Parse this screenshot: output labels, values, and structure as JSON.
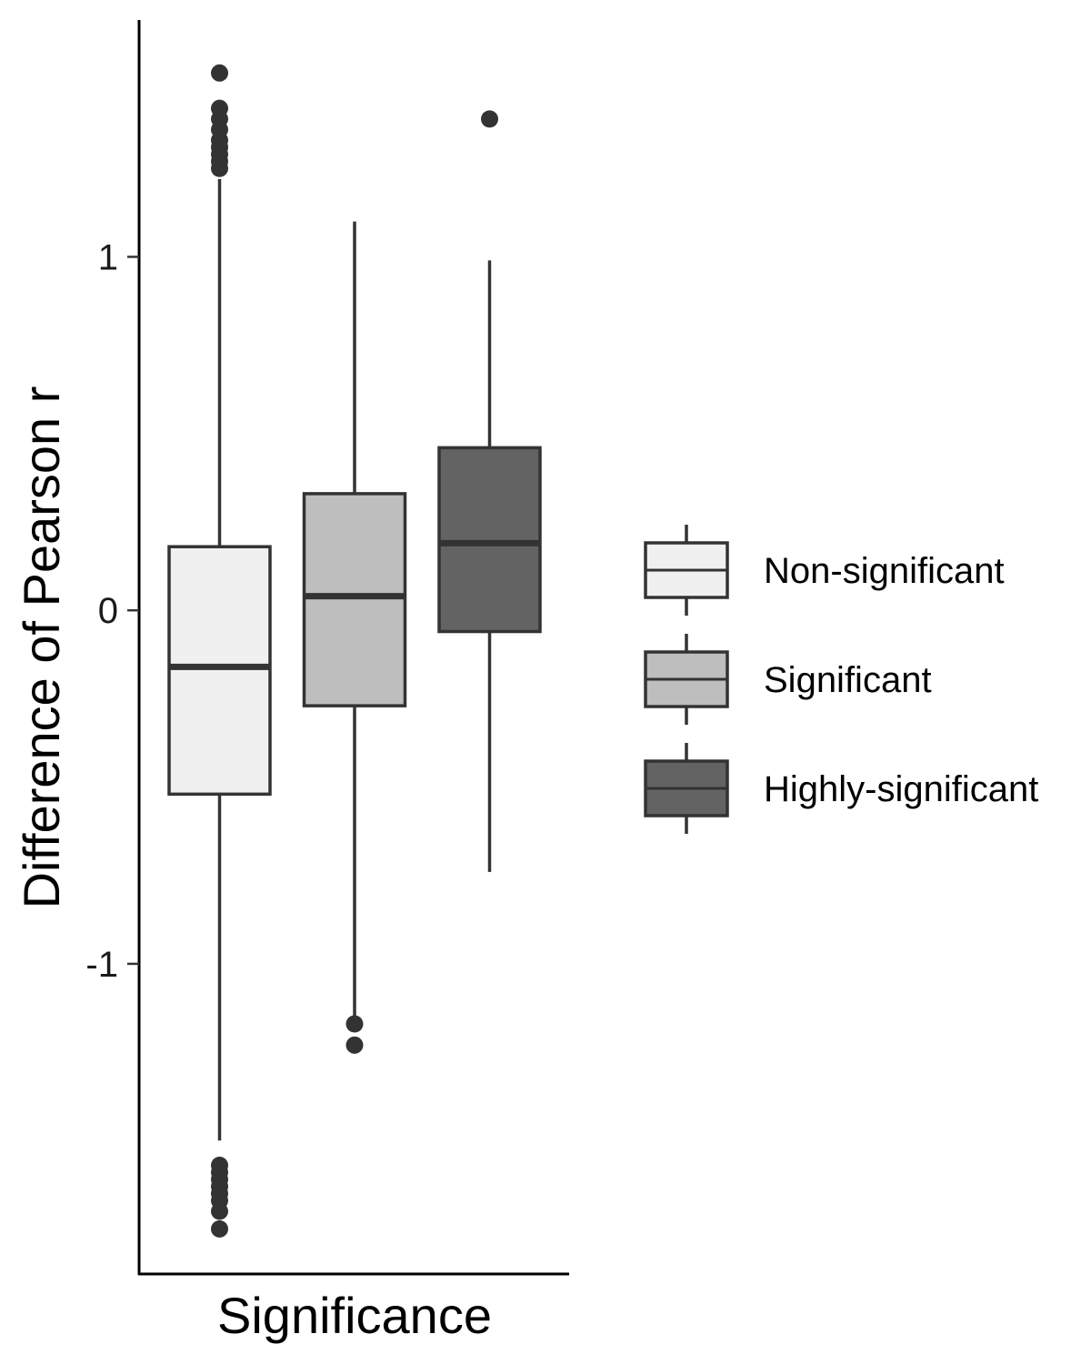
{
  "chart_data": {
    "type": "boxplot",
    "xlabel": "Significance",
    "ylabel": "Difference of Pearson r",
    "ylim": [
      -1.88,
      1.67
    ],
    "yticks": [
      1,
      0,
      -1
    ],
    "ytick_labels": [
      "1",
      "0",
      "-1"
    ],
    "legend_position": "right",
    "grid": false,
    "series": [
      {
        "name": "Non-significant",
        "color": "#f0f0f0",
        "whisker_low": -1.5,
        "q1": -0.52,
        "median": -0.16,
        "q3": 0.18,
        "whisker_high": 1.22,
        "outliers": [
          1.52,
          1.42,
          1.39,
          1.36,
          1.33,
          1.31,
          1.29,
          1.27,
          1.25,
          -1.57,
          -1.59,
          -1.61,
          -1.63,
          -1.65,
          -1.67,
          -1.7,
          -1.75
        ]
      },
      {
        "name": "Significant",
        "color": "#bebebe",
        "whisker_low": -1.15,
        "q1": -0.27,
        "median": 0.04,
        "q3": 0.33,
        "whisker_high": 1.1,
        "outliers": [
          -1.17,
          -1.23
        ]
      },
      {
        "name": "Highly-significant",
        "color": "#636363",
        "whisker_low": -0.74,
        "q1": -0.06,
        "median": 0.19,
        "q3": 0.46,
        "whisker_high": 0.99,
        "outliers": [
          1.39
        ]
      }
    ]
  }
}
